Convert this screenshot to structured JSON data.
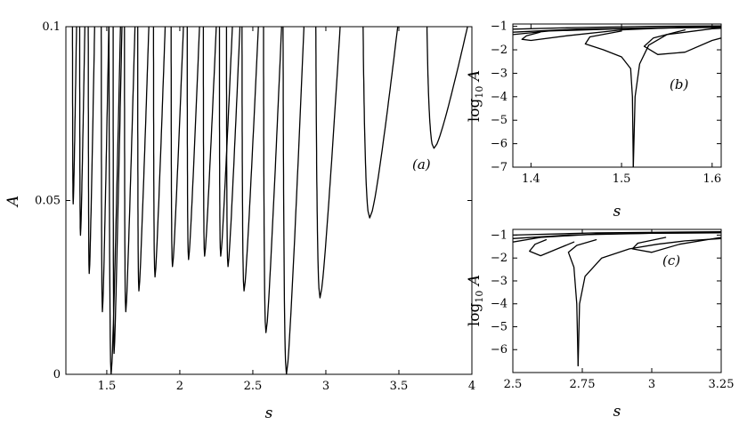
{
  "chart_data": [
    {
      "id": "a",
      "type": "line",
      "panel_label": "(a)",
      "xlabel": "s",
      "ylabel": "A",
      "xlim": [
        1.22,
        4.0
      ],
      "ylim": [
        0,
        0.1
      ],
      "xticks": [
        1.5,
        2,
        2.5,
        3,
        3.5,
        4
      ],
      "xtick_labels": [
        "1.5",
        "2",
        "2.5",
        "3",
        "3.5",
        "4"
      ],
      "yticks": [
        0,
        0.05,
        0.1
      ],
      "ytick_labels": [
        "0",
        "0.05",
        "0.1"
      ],
      "series": [
        {
          "type": "tongue",
          "tip": [
            1.53,
            0.0
          ],
          "width": 0.06,
          "lean": 0.04
        },
        {
          "type": "tongue",
          "tip": [
            1.55,
            0.006
          ],
          "width": 0.035,
          "lean": 0.04
        },
        {
          "type": "tongue",
          "tip": [
            1.63,
            0.018
          ],
          "width": 0.045,
          "lean": 0.045
        },
        {
          "type": "tongue",
          "tip": [
            1.47,
            0.018
          ],
          "width": 0.035,
          "lean": 0.03
        },
        {
          "type": "tongue",
          "tip": [
            1.72,
            0.024
          ],
          "width": 0.045,
          "lean": 0.05
        },
        {
          "type": "tongue",
          "tip": [
            1.83,
            0.028
          ],
          "width": 0.05,
          "lean": 0.05
        },
        {
          "type": "tongue",
          "tip": [
            1.95,
            0.031
          ],
          "width": 0.05,
          "lean": 0.055
        },
        {
          "type": "tongue",
          "tip": [
            2.06,
            0.033
          ],
          "width": 0.05,
          "lean": 0.055
        },
        {
          "type": "tongue",
          "tip": [
            2.17,
            0.034
          ],
          "width": 0.05,
          "lean": 0.06
        },
        {
          "type": "tongue",
          "tip": [
            2.28,
            0.034
          ],
          "width": 0.05,
          "lean": 0.06
        },
        {
          "type": "tongue",
          "tip": [
            2.33,
            0.031
          ],
          "width": 0.055,
          "lean": 0.06
        },
        {
          "type": "tongue",
          "tip": [
            2.44,
            0.024
          ],
          "width": 0.07,
          "lean": 0.07
        },
        {
          "type": "tongue",
          "tip": [
            2.59,
            0.012
          ],
          "width": 0.08,
          "lean": 0.075
        },
        {
          "type": "tongue",
          "tip": [
            2.73,
            0.0
          ],
          "width": 0.1,
          "lean": 0.08
        },
        {
          "type": "tongue",
          "tip": [
            2.96,
            0.022
          ],
          "width": 0.12,
          "lean": 0.09
        },
        {
          "type": "tongue",
          "tip": [
            3.3,
            0.045
          ],
          "width": 0.18,
          "lean": 0.12
        },
        {
          "type": "tongue",
          "tip": [
            3.74,
            0.065
          ],
          "width": 0.2,
          "lean": 0.15
        },
        {
          "type": "tongue",
          "tip": [
            1.38,
            0.029
          ],
          "width": 0.03,
          "lean": 0.025
        },
        {
          "type": "tongue",
          "tip": [
            1.32,
            0.04
          ],
          "width": 0.025,
          "lean": 0.02
        },
        {
          "type": "tongue",
          "tip": [
            1.27,
            0.049
          ],
          "width": 0.02,
          "lean": 0.015
        }
      ]
    },
    {
      "id": "b",
      "type": "line",
      "panel_label": "(b)",
      "xlabel": "s",
      "ylabel": "log10 A",
      "xlim": [
        1.38,
        1.61
      ],
      "ylim": [
        -7,
        -0.9
      ],
      "xticks": [
        1.4,
        1.5,
        1.6
      ],
      "xtick_labels": [
        "1.4",
        "1.5",
        "1.6"
      ],
      "yticks": [
        -7,
        -6,
        -5,
        -4,
        -3,
        -2,
        -1
      ],
      "ytick_labels": [
        "−7",
        "−6",
        "−5",
        "−4",
        "−3",
        "−2",
        "−1"
      ],
      "series": [
        {
          "points": [
            [
              1.41,
              -1.25
            ],
            [
              1.395,
              -1.4
            ],
            [
              1.39,
              -1.55
            ],
            [
              1.4,
              -1.6
            ],
            [
              1.44,
              -1.4
            ],
            [
              1.5,
              -1.15
            ],
            [
              1.58,
              -1.02
            ],
            [
              1.61,
              -1.0
            ]
          ]
        },
        {
          "points": [
            [
              1.5,
              -1.2
            ],
            [
              1.465,
              -1.45
            ],
            [
              1.46,
              -1.75
            ],
            [
              1.48,
              -2.0
            ],
            [
              1.5,
              -2.3
            ],
            [
              1.51,
              -2.8
            ],
            [
              1.512,
              -4.0
            ],
            [
              1.513,
              -7.0
            ]
          ]
        },
        {
          "points": [
            [
              1.513,
              -7.0
            ],
            [
              1.515,
              -4.0
            ],
            [
              1.52,
              -2.6
            ],
            [
              1.53,
              -1.8
            ],
            [
              1.55,
              -1.35
            ],
            [
              1.6,
              -1.1
            ],
            [
              1.61,
              -1.08
            ]
          ]
        },
        {
          "points": [
            [
              1.57,
              -1.15
            ],
            [
              1.535,
              -1.5
            ],
            [
              1.525,
              -1.85
            ],
            [
              1.54,
              -2.2
            ],
            [
              1.57,
              -2.1
            ],
            [
              1.6,
              -1.6
            ],
            [
              1.61,
              -1.5
            ]
          ]
        },
        {
          "points": [
            [
              1.38,
              -1.12
            ],
            [
              1.45,
              -1.05
            ],
            [
              1.53,
              -1.0
            ],
            [
              1.61,
              -0.98
            ]
          ]
        },
        {
          "points": [
            [
              1.38,
              -1.25
            ],
            [
              1.45,
              -1.12
            ],
            [
              1.55,
              -1.05
            ],
            [
              1.61,
              -1.02
            ]
          ]
        },
        {
          "points": [
            [
              1.38,
              -1.35
            ],
            [
              1.42,
              -1.2
            ],
            [
              1.5,
              -1.1
            ],
            [
              1.61,
              -1.04
            ]
          ]
        }
      ]
    },
    {
      "id": "c",
      "type": "line",
      "panel_label": "(c)",
      "xlabel": "s",
      "ylabel": "log10 A",
      "xlim": [
        2.5,
        3.25
      ],
      "ylim": [
        -7,
        -0.75
      ],
      "xticks": [
        2.5,
        2.75,
        3,
        3.25
      ],
      "xtick_labels": [
        "2.5",
        "2.75",
        "3",
        "3.25"
      ],
      "yticks": [
        -6,
        -5,
        -4,
        -3,
        -2,
        -1
      ],
      "ytick_labels": [
        "−6",
        "−5",
        "−4",
        "−3",
        "−2",
        "−1"
      ],
      "series": [
        {
          "points": [
            [
              2.62,
              -1.2
            ],
            [
              2.58,
              -1.4
            ],
            [
              2.56,
              -1.7
            ],
            [
              2.6,
              -1.9
            ],
            [
              2.66,
              -1.6
            ],
            [
              2.72,
              -1.3
            ]
          ]
        },
        {
          "points": [
            [
              2.8,
              -1.2
            ],
            [
              2.73,
              -1.45
            ],
            [
              2.7,
              -1.75
            ],
            [
              2.72,
              -2.4
            ],
            [
              2.73,
              -4.0
            ],
            [
              2.735,
              -6.7
            ]
          ]
        },
        {
          "points": [
            [
              2.735,
              -6.7
            ],
            [
              2.74,
              -4.0
            ],
            [
              2.76,
              -2.8
            ],
            [
              2.82,
              -2.0
            ],
            [
              2.92,
              -1.6
            ],
            [
              3.02,
              -1.4
            ],
            [
              3.12,
              -1.25
            ],
            [
              3.25,
              -1.15
            ]
          ]
        },
        {
          "points": [
            [
              3.05,
              -1.1
            ],
            [
              2.95,
              -1.35
            ],
            [
              2.93,
              -1.6
            ],
            [
              3.0,
              -1.75
            ],
            [
              3.1,
              -1.4
            ],
            [
              3.25,
              -1.1
            ]
          ]
        },
        {
          "points": [
            [
              2.5,
              -1.3
            ],
            [
              2.6,
              -1.1
            ],
            [
              2.8,
              -0.95
            ],
            [
              3.1,
              -0.9
            ],
            [
              3.25,
              -0.88
            ]
          ]
        },
        {
          "points": [
            [
              2.5,
              -1.15
            ],
            [
              2.7,
              -1.0
            ],
            [
              3.0,
              -0.92
            ],
            [
              3.25,
              -0.9
            ]
          ]
        },
        {
          "points": [
            [
              2.5,
              -1.0
            ],
            [
              2.8,
              -0.9
            ],
            [
              3.25,
              -0.85
            ]
          ]
        }
      ]
    }
  ]
}
